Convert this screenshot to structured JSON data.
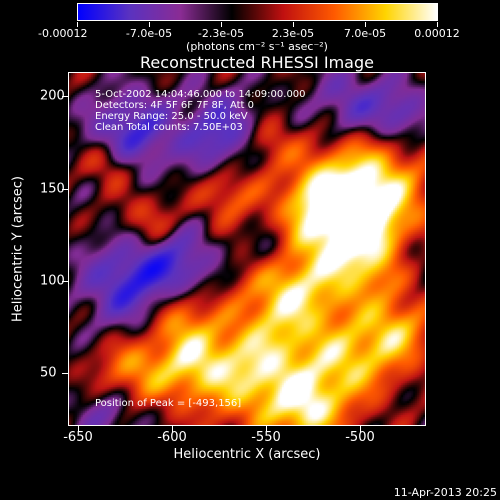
{
  "colorbar": {
    "labels": [
      "-0.00012",
      "-7.0e-05",
      "-2.3e-05",
      "2.3e-05",
      "7.0e-05",
      "0.00012"
    ],
    "units": "(photons cm⁻² s⁻¹ asec⁻²)",
    "colors": [
      "#0000ff",
      "#5a32c0",
      "#8a2c94",
      "#000000",
      "#c01010",
      "#ff5a00",
      "#ffd400",
      "#ffffff"
    ]
  },
  "plot": {
    "title": "Reconstructed RHESSI Image",
    "time_range": "5-Oct-2002 14:04:46.000 to 14:09:00.000",
    "detectors": "Detectors: 4F 5F 6F 7F 8F, Att 0",
    "energy_range": "Energy Range: 25.0 - 50.0 keV",
    "clean_counts": "Clean    Total counts: 7.50E+03",
    "peak": "Position of Peak = [-493,156]",
    "x_axis": {
      "title": "Heliocentric X (arcsec)",
      "ticks": [
        "-650",
        "-600",
        "-550",
        "-500"
      ]
    },
    "y_axis": {
      "title": "Heliocentric Y (arcsec)",
      "ticks": [
        "200",
        "150",
        "100",
        "50"
      ]
    }
  },
  "timestamp": "11-Apr-2013 20:25"
}
